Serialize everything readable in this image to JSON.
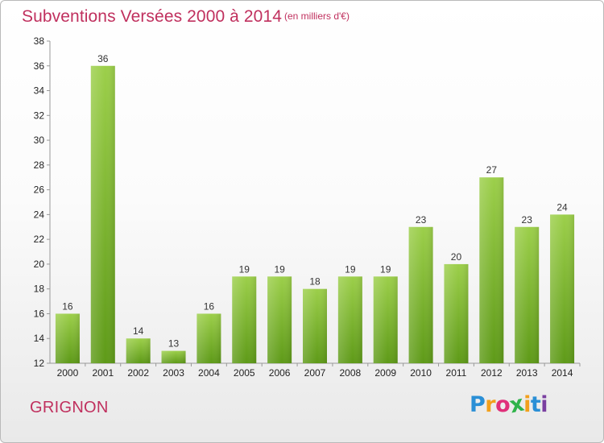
{
  "header": {
    "title": "Subventions Versées 2000 à 2014",
    "subtitle": "(en milliers d'€)"
  },
  "footer": {
    "town": "GRIGNON",
    "logo_text": "Proxiti",
    "logo_colors": [
      "#2a8fd6",
      "#f2a01c",
      "#e0307a",
      "#2fb34a",
      "#f2a01c",
      "#2a8fd6",
      "#7a3fa0"
    ]
  },
  "chart_data": {
    "type": "bar",
    "title": "Subventions Versées 2000 à 2014",
    "subtitle": "(en milliers d'€)",
    "xlabel": "",
    "ylabel": "",
    "categories": [
      "2000",
      "2001",
      "2002",
      "2003",
      "2004",
      "2005",
      "2006",
      "2007",
      "2008",
      "2009",
      "2010",
      "2011",
      "2012",
      "2013",
      "2014"
    ],
    "values": [
      16,
      36,
      14,
      13,
      16,
      19,
      19,
      18,
      19,
      19,
      23,
      20,
      27,
      23,
      24
    ],
    "ylim": [
      12,
      38
    ],
    "yticks": [
      12,
      14,
      16,
      18,
      20,
      22,
      24,
      26,
      28,
      30,
      32,
      34,
      36,
      38
    ],
    "grid": false,
    "bar_color_top": "#9ccf4a",
    "bar_color_bottom": "#5e9a18"
  }
}
